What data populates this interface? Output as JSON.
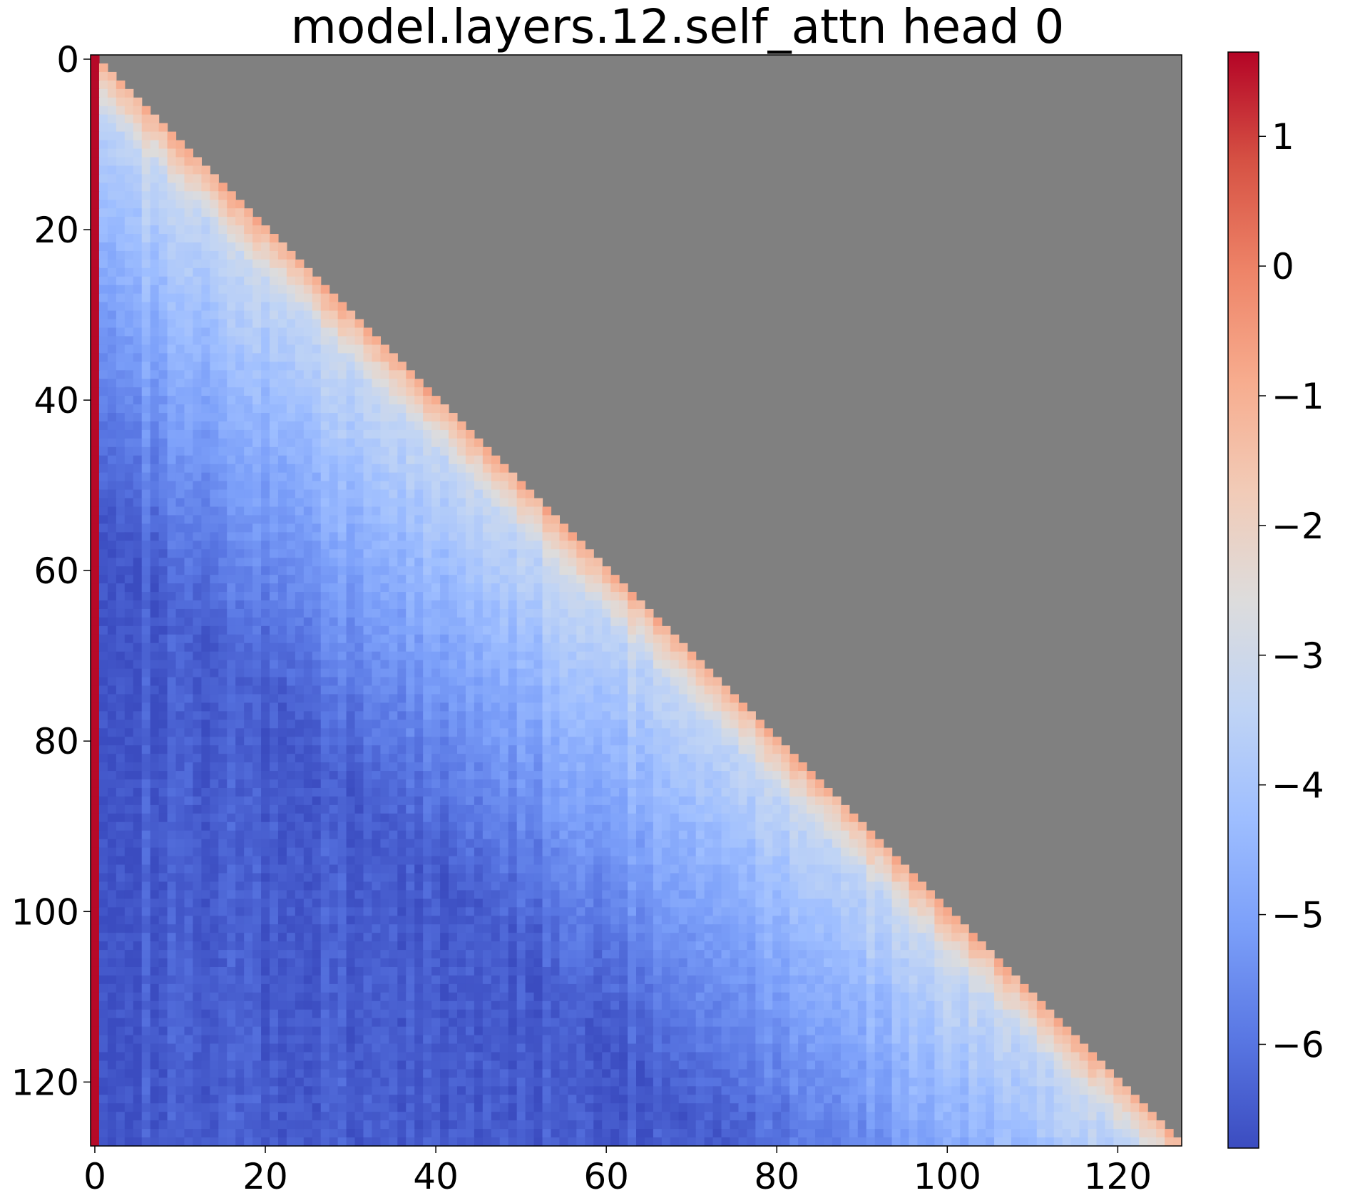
{
  "chart_data": {
    "type": "heatmap",
    "title": "model.layers.12.self_attn head 0",
    "xlabel": "",
    "ylabel": "",
    "rows": 128,
    "cols": 128,
    "mask": "upper-triangle (key index > query index) shown as grey",
    "mask_color": "#808080",
    "colormap": "coolwarm",
    "colormap_stops": [
      "#3b4cc0",
      "#5977e3",
      "#7b9ff9",
      "#9ebeff",
      "#c0d4f5",
      "#dddcdc",
      "#f2cbb7",
      "#f7ac8e",
      "#ee8468",
      "#d65244",
      "#b40426"
    ],
    "value_range": [
      -6.8,
      1.65
    ],
    "x_ticks": [
      {
        "value": 0,
        "label": "0"
      },
      {
        "value": 20,
        "label": "20"
      },
      {
        "value": 40,
        "label": "40"
      },
      {
        "value": 60,
        "label": "60"
      },
      {
        "value": 80,
        "label": "80"
      },
      {
        "value": 100,
        "label": "100"
      },
      {
        "value": 120,
        "label": "120"
      }
    ],
    "y_ticks": [
      {
        "value": 0,
        "label": "0"
      },
      {
        "value": 20,
        "label": "20"
      },
      {
        "value": 40,
        "label": "40"
      },
      {
        "value": 60,
        "label": "60"
      },
      {
        "value": 80,
        "label": "80"
      },
      {
        "value": 100,
        "label": "100"
      },
      {
        "value": 120,
        "label": "120"
      }
    ],
    "colorbar_ticks": [
      {
        "value": 1,
        "label": "1"
      },
      {
        "value": 0,
        "label": "0"
      },
      {
        "value": -1,
        "label": "−1"
      },
      {
        "value": -2,
        "label": "−2"
      },
      {
        "value": -3,
        "label": "−3"
      },
      {
        "value": -4,
        "label": "−4"
      },
      {
        "value": -5,
        "label": "−5"
      },
      {
        "value": -6,
        "label": "−6"
      }
    ],
    "approx_values": {
      "column_0": 1.6,
      "diagonal": -1.0,
      "near_diagonal_band": -2.5,
      "far_from_diagonal_bottom_left": -6.5
    },
    "grid": false,
    "legend": "colorbar-right"
  }
}
